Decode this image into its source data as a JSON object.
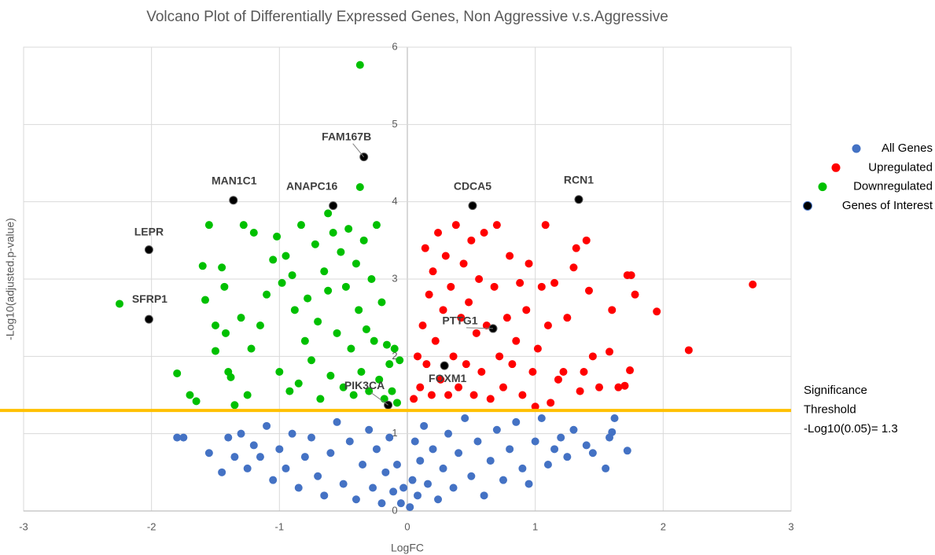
{
  "chart_data": {
    "type": "scatter",
    "title": "Volcano Plot of Differentially Expressed Genes, Non Aggressive v.s.Aggressive",
    "x_label": "LogFC",
    "y_label": "-Log10(adjusted.p-value)",
    "xlim": [
      -3,
      3
    ],
    "xticks": [
      -3,
      -2,
      -1,
      0,
      1,
      2,
      3
    ],
    "ylim": [
      0,
      6
    ],
    "yticks": [
      0,
      1,
      2,
      3,
      4,
      5,
      6
    ],
    "grid": true,
    "legend": "right",
    "threshold": {
      "value": 1.3,
      "color": "#ffc000",
      "label": [
        "Significance",
        "Threshold",
        "-Log10(0.05)= 1.3"
      ]
    },
    "series": [
      {
        "name": "All Genes",
        "color": "#4472c4",
        "x": [
          -1.8,
          -1.75,
          -1.55,
          -1.45,
          -1.4,
          -1.35,
          -1.3,
          -1.25,
          -1.2,
          -1.15,
          -1.1,
          -1.05,
          -1.0,
          -0.95,
          -0.9,
          -0.85,
          -0.8,
          -0.75,
          -0.7,
          -0.65,
          -0.6,
          -0.55,
          -0.5,
          -0.45,
          -0.4,
          -0.35,
          -0.3,
          -0.27,
          -0.24,
          -0.2,
          -0.17,
          -0.14,
          -0.11,
          -0.08,
          -0.05,
          -0.03,
          0.02,
          0.04,
          0.06,
          0.08,
          0.1,
          0.13,
          0.16,
          0.2,
          0.24,
          0.28,
          0.32,
          0.36,
          0.4,
          0.45,
          0.5,
          0.55,
          0.6,
          0.65,
          0.7,
          0.75,
          0.8,
          0.85,
          0.9,
          0.95,
          1.0,
          1.05,
          1.1,
          1.15,
          1.2,
          1.25,
          1.3,
          1.4,
          1.45,
          1.55,
          1.58,
          1.6,
          1.62,
          1.72
        ],
        "values": [
          0.95,
          0.95,
          0.75,
          0.5,
          0.95,
          0.7,
          1.0,
          0.55,
          0.85,
          0.7,
          1.1,
          0.4,
          0.8,
          0.55,
          1.0,
          0.3,
          0.7,
          0.95,
          0.45,
          0.2,
          0.75,
          1.15,
          0.35,
          0.9,
          0.15,
          0.6,
          1.05,
          0.3,
          0.8,
          0.1,
          0.5,
          0.95,
          0.25,
          0.6,
          0.1,
          0.3,
          0.05,
          0.4,
          0.9,
          0.2,
          0.65,
          1.1,
          0.35,
          0.8,
          0.15,
          0.55,
          1.0,
          0.3,
          0.75,
          1.2,
          0.45,
          0.9,
          0.2,
          0.65,
          1.05,
          0.4,
          0.8,
          1.15,
          0.55,
          0.35,
          0.9,
          1.2,
          0.6,
          0.8,
          0.95,
          0.7,
          1.05,
          0.85,
          0.75,
          0.55,
          0.95,
          1.02,
          1.2,
          0.78
        ]
      },
      {
        "name": "Upregulated",
        "color": "#ff0000",
        "x": [
          0.05,
          0.08,
          0.1,
          0.12,
          0.14,
          0.15,
          0.17,
          0.19,
          0.2,
          0.22,
          0.24,
          0.26,
          0.28,
          0.3,
          0.32,
          0.34,
          0.36,
          0.38,
          0.4,
          0.42,
          0.44,
          0.46,
          0.48,
          0.5,
          0.52,
          0.54,
          0.56,
          0.58,
          0.6,
          0.62,
          0.65,
          0.68,
          0.7,
          0.72,
          0.75,
          0.78,
          0.8,
          0.82,
          0.85,
          0.88,
          0.9,
          0.93,
          0.95,
          0.98,
          1.0,
          1.02,
          1.05,
          1.08,
          1.1,
          1.12,
          1.15,
          1.18,
          1.22,
          1.25,
          1.3,
          1.32,
          1.35,
          1.38,
          1.4,
          1.42,
          1.45,
          1.5,
          1.58,
          1.6,
          1.65,
          1.7,
          1.72,
          1.74,
          1.75,
          1.78,
          1.95,
          2.2,
          2.7
        ],
        "values": [
          1.45,
          2.0,
          1.6,
          2.4,
          3.4,
          1.9,
          2.8,
          1.5,
          3.1,
          2.2,
          3.6,
          1.7,
          2.6,
          3.3,
          1.5,
          2.9,
          2.0,
          3.7,
          1.6,
          2.5,
          3.2,
          1.9,
          2.7,
          3.5,
          1.5,
          2.3,
          3.0,
          1.8,
          3.6,
          2.4,
          1.45,
          2.9,
          3.7,
          2.0,
          1.6,
          2.5,
          3.3,
          1.9,
          2.2,
          2.95,
          1.5,
          2.6,
          3.2,
          1.8,
          1.35,
          2.1,
          2.9,
          3.7,
          2.4,
          1.4,
          2.95,
          1.7,
          1.8,
          2.5,
          3.15,
          3.4,
          1.55,
          1.8,
          3.5,
          2.85,
          2.0,
          1.6,
          2.06,
          2.6,
          1.6,
          1.62,
          3.05,
          1.82,
          3.05,
          2.8,
          2.58,
          2.08,
          2.93
        ]
      },
      {
        "name": "Downregulated",
        "color": "#00c000",
        "x": [
          -0.37,
          -0.37,
          -0.62,
          -2.25,
          -1.8,
          -1.7,
          -1.65,
          -1.6,
          -1.58,
          -1.55,
          -1.5,
          -1.5,
          -1.45,
          -1.43,
          -1.42,
          -1.4,
          -1.38,
          -1.35,
          -1.3,
          -1.28,
          -1.25,
          -1.22,
          -1.2,
          -1.15,
          -1.1,
          -1.05,
          -1.02,
          -1.0,
          -0.98,
          -0.95,
          -0.92,
          -0.9,
          -0.88,
          -0.85,
          -0.83,
          -0.8,
          -0.78,
          -0.75,
          -0.72,
          -0.7,
          -0.68,
          -0.65,
          -0.62,
          -0.6,
          -0.58,
          -0.55,
          -0.52,
          -0.5,
          -0.48,
          -0.46,
          -0.44,
          -0.42,
          -0.4,
          -0.38,
          -0.36,
          -0.34,
          -0.32,
          -0.3,
          -0.28,
          -0.26,
          -0.24,
          -0.22,
          -0.2,
          -0.18,
          -0.16,
          -0.14,
          -0.12,
          -0.1,
          -0.08,
          -0.06
        ],
        "values": [
          5.77,
          4.19,
          3.85,
          2.68,
          1.78,
          1.5,
          1.42,
          3.17,
          2.73,
          3.7,
          2.4,
          2.07,
          3.15,
          2.9,
          2.3,
          1.8,
          1.73,
          1.37,
          2.5,
          3.7,
          1.5,
          2.1,
          3.6,
          2.4,
          2.8,
          3.25,
          3.55,
          1.8,
          2.95,
          3.3,
          1.55,
          3.05,
          2.6,
          1.65,
          3.7,
          2.2,
          2.75,
          1.95,
          3.45,
          2.45,
          1.45,
          3.1,
          2.85,
          1.75,
          3.6,
          2.3,
          3.35,
          1.6,
          2.9,
          3.65,
          2.1,
          1.5,
          3.2,
          2.6,
          1.8,
          3.5,
          2.35,
          1.55,
          3.0,
          2.2,
          3.7,
          1.7,
          2.7,
          1.45,
          2.15,
          1.9,
          1.55,
          2.1,
          1.4,
          1.95
        ]
      },
      {
        "name": "Genes of Interest",
        "color": "#000000",
        "x": [
          -2.02,
          -2.02,
          -1.36,
          -0.58,
          -0.34,
          0.51,
          1.34,
          0.67,
          0.29,
          -0.15
        ],
        "values": [
          2.48,
          3.38,
          4.02,
          3.95,
          4.58,
          3.95,
          4.03,
          2.36,
          1.88,
          1.37
        ],
        "labels": [
          "SFRP1",
          "LEPR",
          "MAN1C1",
          "ANAPC16",
          "FAM167B",
          "CDCA5",
          "RCN1",
          "PTTG1",
          "FOXM1",
          "PIK3CA"
        ]
      }
    ]
  }
}
